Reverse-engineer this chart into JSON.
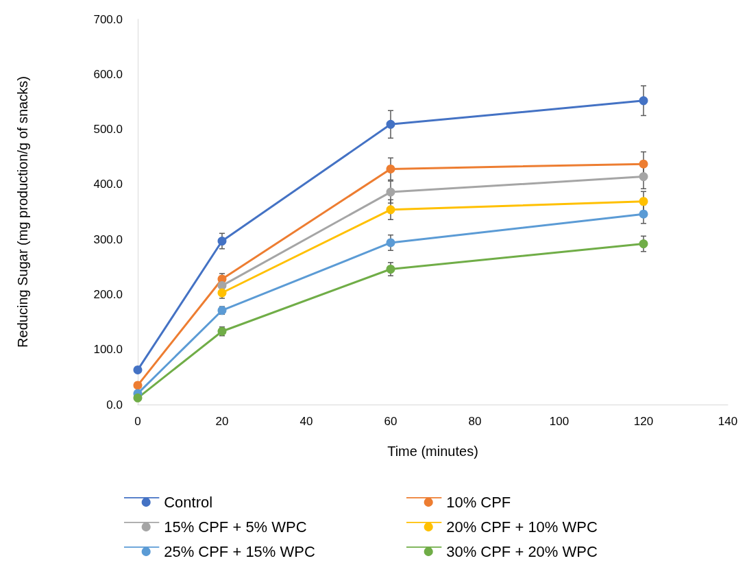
{
  "chart_data": {
    "type": "line",
    "xlabel": "Time (minutes)",
    "ylabel": "Reducing Sugar (mg production/g of snacks)",
    "x": [
      0,
      20,
      60,
      120
    ],
    "xlim": [
      0,
      140
    ],
    "xticks": [
      0,
      20,
      40,
      60,
      80,
      100,
      120,
      140
    ],
    "ylim": [
      0,
      700
    ],
    "yticks": [
      {
        "value": 0,
        "label": "0.0"
      },
      {
        "value": 100,
        "label": "100.0"
      },
      {
        "value": 200,
        "label": "200.0"
      },
      {
        "value": 300,
        "label": "300.0"
      },
      {
        "value": 400,
        "label": "400.0"
      },
      {
        "value": 500,
        "label": "500.0"
      },
      {
        "value": 600,
        "label": "600.0"
      },
      {
        "value": 700,
        "label": "700.0"
      }
    ],
    "grid": false,
    "legend": "bottom",
    "marker": "circle",
    "line_style": "solid",
    "series": [
      {
        "name": "Control",
        "color": "#4472c4",
        "values": [
          63,
          297,
          509,
          552
        ],
        "errors": [
          null,
          14,
          25,
          27
        ]
      },
      {
        "name": "10% CPF",
        "color": "#ed7d31",
        "values": [
          35,
          228,
          428,
          437
        ],
        "errors": [
          null,
          10,
          20,
          22
        ]
      },
      {
        "name": "15% CPF + 5% WPC",
        "color": "#a5a5a5",
        "values": [
          null,
          216,
          386,
          414
        ],
        "errors": [
          null,
          10,
          20,
          22
        ]
      },
      {
        "name": "20% CPF + 10% WPC",
        "color": "#ffc000",
        "values": [
          null,
          203,
          354,
          369
        ],
        "errors": [
          null,
          10,
          18,
          18
        ]
      },
      {
        "name": "25% CPF + 15% WPC",
        "color": "#5b9bd5",
        "values": [
          20,
          171,
          294,
          346
        ],
        "errors": [
          null,
          7,
          14,
          17
        ]
      },
      {
        "name": "30% CPF + 20% WPC",
        "color": "#70ad47",
        "values": [
          12,
          133,
          246,
          292
        ],
        "errors": [
          null,
          8,
          12,
          14
        ]
      }
    ]
  }
}
